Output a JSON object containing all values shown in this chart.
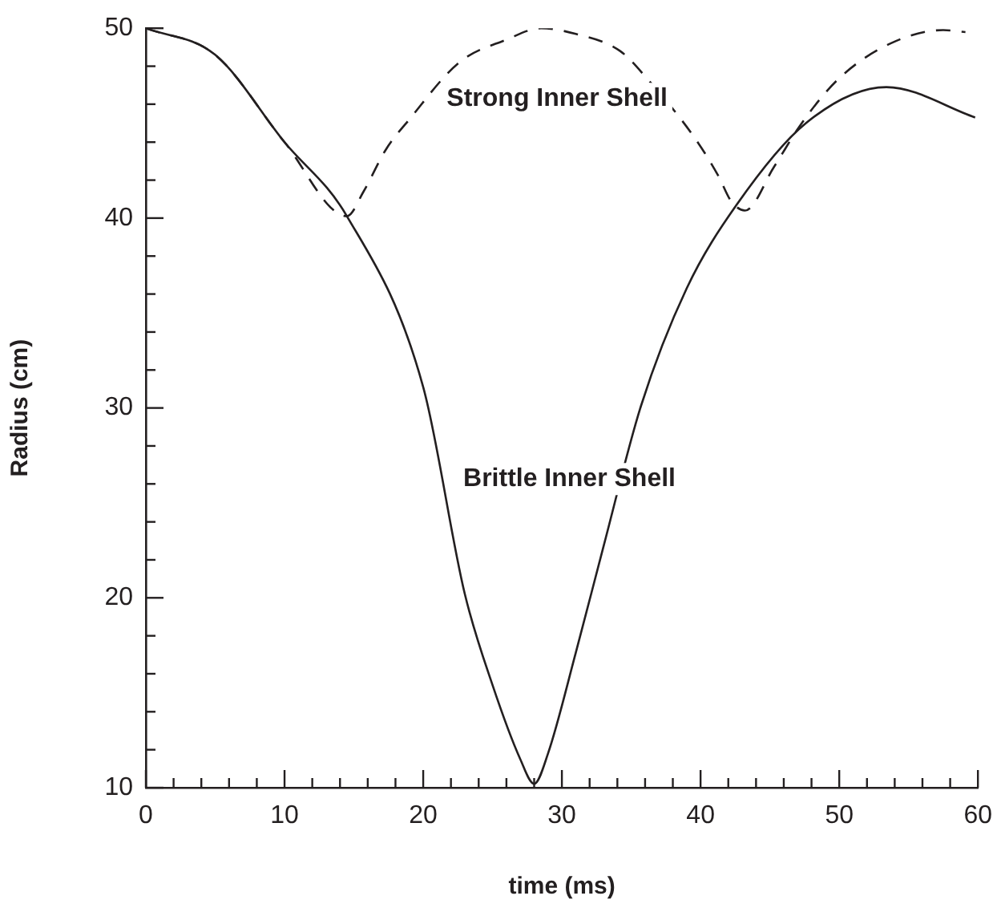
{
  "chart_data": {
    "type": "line",
    "xlabel": "time (ms)",
    "ylabel": "Radius (cm)",
    "xlim": [
      0,
      60
    ],
    "ylim": [
      10,
      50
    ],
    "xticks": [
      0,
      {
        "value": 2,
        "label": null
      },
      {
        "value": 4,
        "label": null
      },
      {
        "value": 6,
        "label": null
      },
      {
        "value": 8,
        "label": null
      },
      10,
      {
        "value": 12,
        "label": null
      },
      {
        "value": 14,
        "label": null
      },
      {
        "value": 16,
        "label": null
      },
      {
        "value": 18,
        "label": null
      },
      20,
      {
        "value": 22,
        "label": null
      },
      {
        "value": 24,
        "label": null
      },
      {
        "value": 26,
        "label": null
      },
      {
        "value": 28,
        "label": null
      },
      30,
      {
        "value": 32,
        "label": null
      },
      {
        "value": 34,
        "label": null
      },
      {
        "value": 36,
        "label": null
      },
      {
        "value": 38,
        "label": null
      },
      40,
      {
        "value": 42,
        "label": null
      },
      {
        "value": 44,
        "label": null
      },
      {
        "value": 46,
        "label": null
      },
      {
        "value": 48,
        "label": null
      },
      50,
      {
        "value": 52,
        "label": null
      },
      {
        "value": 54,
        "label": null
      },
      {
        "value": 56,
        "label": null
      },
      {
        "value": 58,
        "label": null
      },
      60
    ],
    "yticks": [
      10,
      {
        "value": 12,
        "label": null
      },
      {
        "value": 14,
        "label": null
      },
      {
        "value": 16,
        "label": null
      },
      {
        "value": 18,
        "label": null
      },
      20,
      {
        "value": 22,
        "label": null
      },
      {
        "value": 24,
        "label": null
      },
      {
        "value": 26,
        "label": null
      },
      {
        "value": 28,
        "label": null
      },
      30,
      {
        "value": 32,
        "label": null
      },
      {
        "value": 34,
        "label": null
      },
      {
        "value": 36,
        "label": null
      },
      {
        "value": 38,
        "label": null
      },
      40,
      {
        "value": 42,
        "label": null
      },
      {
        "value": 44,
        "label": null
      },
      {
        "value": 46,
        "label": null
      },
      {
        "value": 48,
        "label": null
      },
      50
    ],
    "grid": false,
    "legend": false,
    "marker": "none",
    "series": [
      {
        "name": "Strong Inner Shell",
        "color": "#231f20",
        "line_style": "dashed",
        "x": [
          0,
          5,
          10,
          14.5,
          15.7,
          17.3,
          19,
          22.6,
          26,
          28.5,
          31,
          34.2,
          36.2,
          39.6,
          41.3,
          42.2,
          43.2,
          45.3,
          47.2,
          49.9,
          53.7,
          57.5,
          59.1
        ],
        "values": [
          50,
          48.6,
          44,
          40.1,
          41.4,
          43.6,
          45.2,
          48.2,
          49.4,
          50,
          49.7,
          48.8,
          47.3,
          44.2,
          42.2,
          40.9,
          40.4,
          42.7,
          44.9,
          47.3,
          49.2,
          49.9,
          49.8
        ]
      },
      {
        "name": "Brittle Inner Shell",
        "color": "#231f20",
        "line_style": "solid",
        "x": [
          0,
          5,
          10,
          14.5,
          20,
          23,
          25,
          27,
          28,
          29,
          31,
          33,
          35.7,
          39,
          42.6,
          47.6,
          53.4,
          59.8
        ],
        "values": [
          50,
          48.6,
          44,
          40.1,
          31.1,
          20.2,
          15.4,
          11.5,
          10.2,
          11.8,
          17.1,
          22.7,
          30.1,
          36.3,
          40.7,
          45,
          46.9,
          45.3
        ]
      }
    ]
  }
}
